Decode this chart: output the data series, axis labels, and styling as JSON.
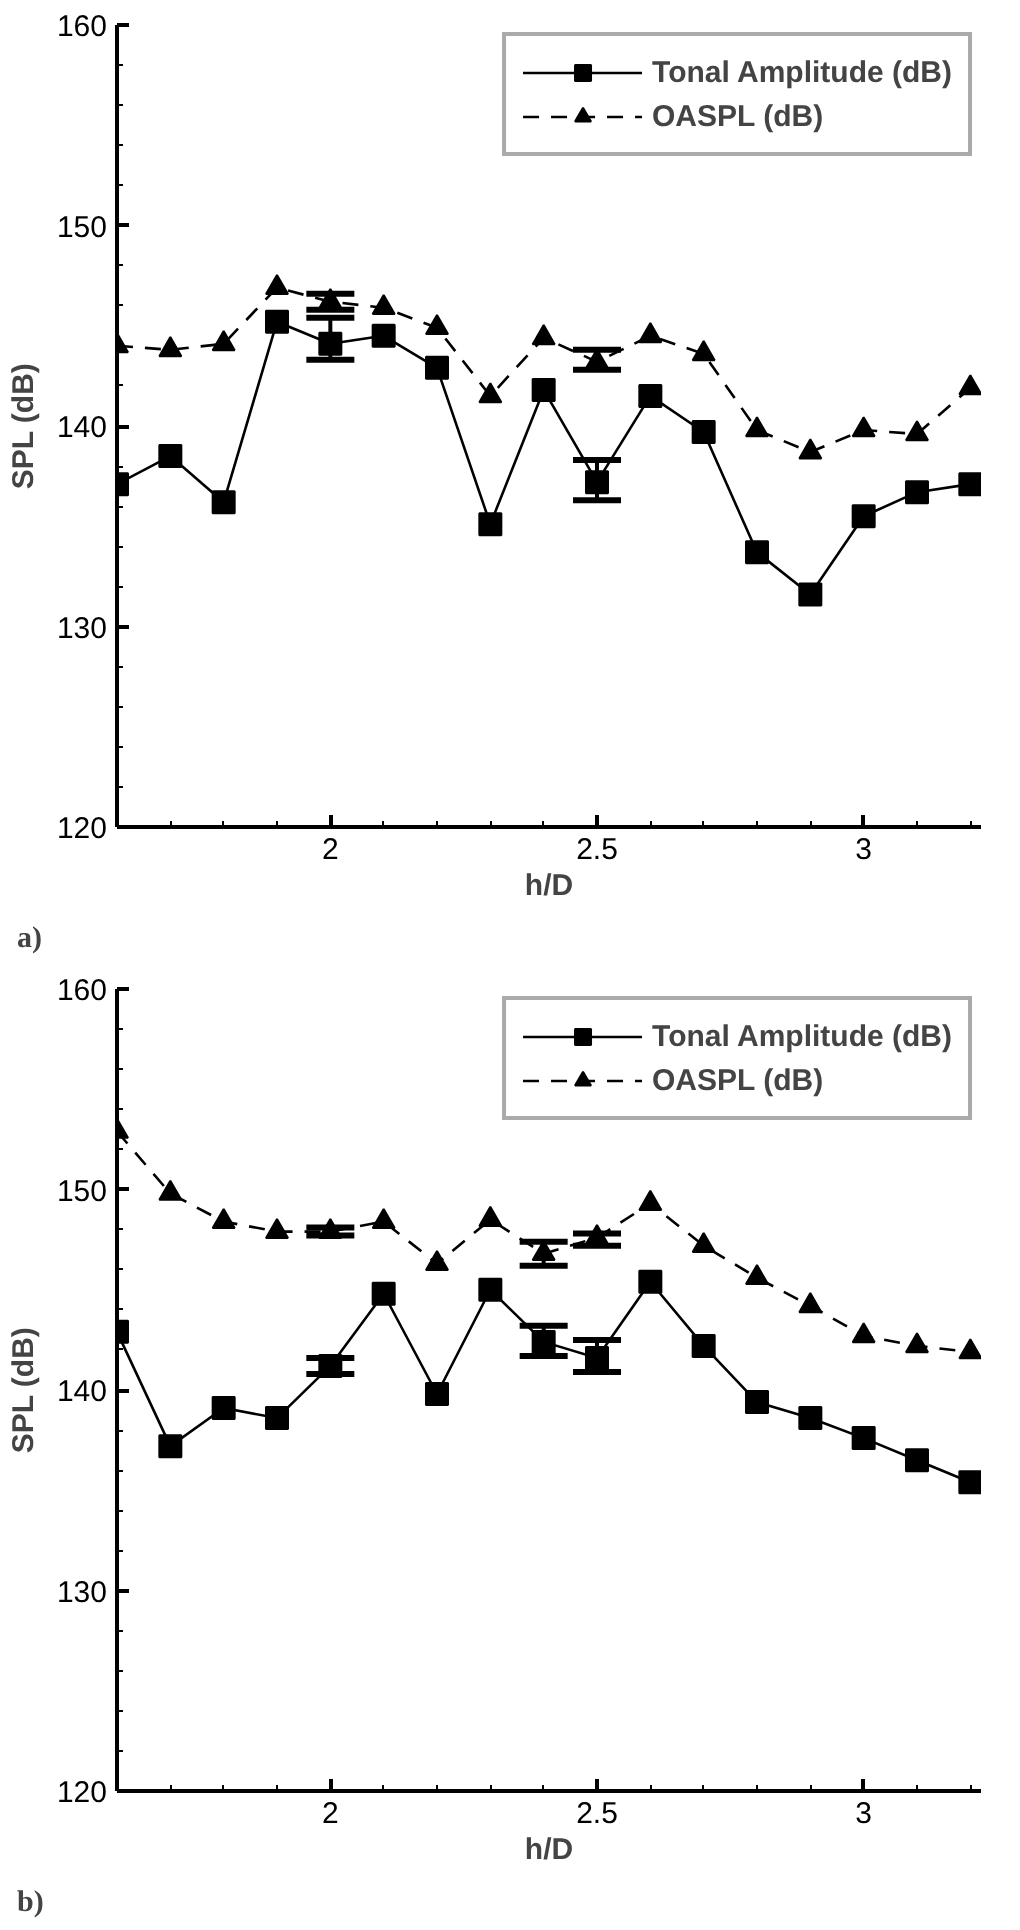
{
  "chart_data": [
    {
      "type": "line",
      "xlabel": "h/D",
      "ylabel": "SPL (dB)",
      "annotations": [
        "a)"
      ],
      "xlim": [
        1.6,
        3.22
      ],
      "xticks": [
        2,
        2.5,
        3
      ],
      "ylim": [
        120,
        160
      ],
      "yticks": [
        120,
        130,
        140,
        150,
        160
      ],
      "grid": false,
      "legend": "top right",
      "x": [
        1.6,
        1.7,
        1.8,
        1.9,
        2.0,
        2.1,
        2.2,
        2.3,
        2.4,
        2.5,
        2.6,
        2.7,
        2.8,
        2.9,
        3.0,
        3.1,
        3.2
      ],
      "series": [
        {
          "name": "Tonal Amplitude (dB)",
          "color": "#000000",
          "marker": "square",
          "line_style": "solid",
          "values": [
            137.1,
            138.5,
            136.2,
            145.2,
            144.1,
            144.5,
            142.9,
            135.1,
            141.8,
            137.2,
            141.5,
            139.7,
            133.7,
            131.6,
            135.5,
            136.7,
            137.1
          ],
          "errors": [
            null,
            null,
            null,
            null,
            [
              143.3,
              145.4
            ],
            null,
            null,
            null,
            null,
            [
              136.3,
              138.3
            ],
            null,
            null,
            null,
            null,
            null,
            null,
            null
          ]
        },
        {
          "name": "OASPL (dB)",
          "color": "#000000",
          "marker": "triangle",
          "line_style": "dashed",
          "values": [
            144.0,
            143.8,
            144.1,
            146.9,
            146.2,
            145.9,
            144.9,
            141.5,
            144.4,
            143.2,
            144.5,
            143.6,
            139.8,
            138.7,
            139.8,
            139.6,
            141.9
          ],
          "errors": [
            null,
            null,
            null,
            null,
            [
              145.8,
              146.6
            ],
            null,
            null,
            null,
            null,
            [
              142.8,
              143.8
            ],
            null,
            null,
            null,
            null,
            null,
            null,
            null
          ]
        }
      ]
    },
    {
      "type": "line",
      "xlabel": "h/D",
      "ylabel": "SPL (dB)",
      "annotations": [
        "b)"
      ],
      "xlim": [
        1.6,
        3.22
      ],
      "xticks": [
        2,
        2.5,
        3
      ],
      "ylim": [
        120,
        160
      ],
      "yticks": [
        120,
        130,
        140,
        150,
        160
      ],
      "grid": false,
      "legend": "top right",
      "x": [
        1.6,
        1.7,
        1.8,
        1.9,
        2.0,
        2.1,
        2.2,
        2.3,
        2.4,
        2.5,
        2.6,
        2.7,
        2.8,
        2.9,
        3.0,
        3.1,
        3.2
      ],
      "series": [
        {
          "name": "Tonal Amplitude (dB)",
          "color": "#000000",
          "marker": "square",
          "line_style": "solid",
          "values": [
            142.9,
            137.2,
            139.1,
            138.6,
            141.2,
            144.8,
            139.8,
            145.0,
            142.4,
            141.6,
            145.4,
            142.2,
            139.4,
            138.6,
            137.6,
            136.5,
            135.4
          ],
          "errors": [
            null,
            null,
            null,
            null,
            [
              140.8,
              141.6
            ],
            null,
            null,
            null,
            [
              141.7,
              143.2
            ],
            [
              140.9,
              142.5
            ],
            null,
            null,
            null,
            null,
            null,
            null,
            null
          ]
        },
        {
          "name": "OASPL (dB)",
          "color": "#000000",
          "marker": "triangle",
          "line_style": "dashed",
          "values": [
            152.9,
            149.8,
            148.4,
            147.9,
            147.9,
            148.4,
            146.3,
            148.5,
            146.8,
            147.6,
            149.3,
            147.2,
            145.6,
            144.2,
            142.7,
            142.2,
            141.9
          ],
          "errors": [
            null,
            null,
            null,
            null,
            [
              147.7,
              148.1
            ],
            null,
            null,
            null,
            [
              146.2,
              147.4
            ],
            [
              147.2,
              147.8
            ],
            null,
            null,
            null,
            null,
            null,
            null,
            null
          ]
        }
      ]
    }
  ]
}
